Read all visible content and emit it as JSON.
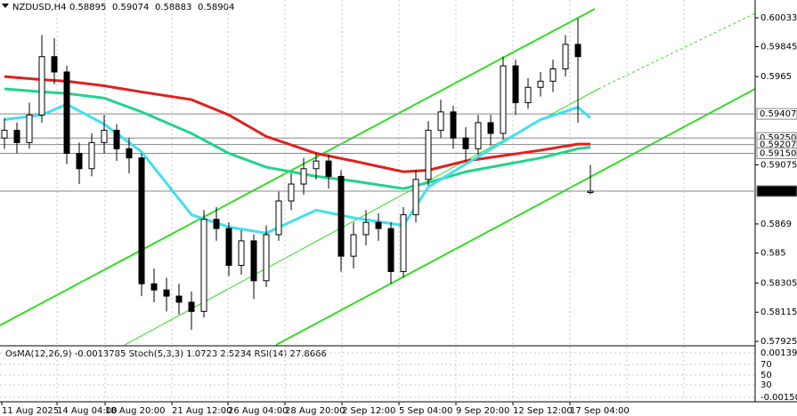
{
  "chart_data": {
    "type": "candlestick",
    "title": "NZDUSD,H4",
    "header_values": [
      "0.58895",
      "0.59074",
      "0.58883",
      "0.58904"
    ],
    "ylim": [
      0.57902,
      0.60149
    ],
    "yticks": [
      0.60033,
      0.59845,
      0.5965,
      0.59075,
      0.5869,
      0.585,
      0.58305,
      0.58115,
      0.57925
    ],
    "xlabels": [
      "11 Aug 2025",
      "14 Aug 04:00",
      "18 Aug 20:00",
      "21 Aug 12:00",
      "26 Aug 04:00",
      "28 Aug 20:00",
      "2 Sep 12:00",
      "5 Sep 04:00",
      "9 Sep 20:00",
      "12 Sep 12:00",
      "17 Sep 04:00"
    ],
    "color": "#000000",
    "grid": true,
    "open": [
      0.5925,
      0.593,
      0.5922,
      0.594,
      0.5978,
      0.5968,
      0.5915,
      0.5905,
      0.5922,
      0.593,
      0.5918,
      0.5912,
      0.583,
      0.5826,
      0.5822,
      0.5818,
      0.5812,
      0.5872,
      0.5866,
      0.5842,
      0.5858,
      0.5832,
      0.5862,
      0.5884,
      0.5895,
      0.5905,
      0.591,
      0.59,
      0.5848,
      0.5862,
      0.587,
      0.5866,
      0.5838,
      0.5875,
      0.5898,
      0.593,
      0.5942,
      0.5925,
      0.5918,
      0.5935,
      0.5928,
      0.5972,
      0.5948,
      0.5958,
      0.5962,
      0.597,
      0.5986,
      0.58895
    ],
    "high": [
      0.5938,
      0.5935,
      0.5948,
      0.5992,
      0.599,
      0.5972,
      0.5922,
      0.5928,
      0.594,
      0.5934,
      0.5925,
      0.5915,
      0.584,
      0.5834,
      0.583,
      0.5825,
      0.5878,
      0.588,
      0.587,
      0.5865,
      0.5862,
      0.5868,
      0.589,
      0.5902,
      0.5912,
      0.5915,
      0.5914,
      0.5904,
      0.587,
      0.5878,
      0.5876,
      0.587,
      0.588,
      0.5904,
      0.5936,
      0.595,
      0.5946,
      0.5932,
      0.594,
      0.594,
      0.5978,
      0.5976,
      0.5964,
      0.5968,
      0.5976,
      0.5992,
      0.6003,
      0.59074
    ],
    "low": [
      0.5918,
      0.5915,
      0.5918,
      0.5935,
      0.596,
      0.5908,
      0.5895,
      0.59,
      0.5915,
      0.591,
      0.5902,
      0.5822,
      0.5818,
      0.5812,
      0.581,
      0.58,
      0.5808,
      0.5858,
      0.5835,
      0.5836,
      0.582,
      0.5828,
      0.5858,
      0.5878,
      0.5888,
      0.5898,
      0.5892,
      0.5838,
      0.584,
      0.5855,
      0.5858,
      0.583,
      0.5834,
      0.587,
      0.5894,
      0.5925,
      0.5918,
      0.591,
      0.5914,
      0.592,
      0.5924,
      0.594,
      0.5944,
      0.5952,
      0.5955,
      0.5965,
      0.5935,
      0.58883
    ],
    "close": [
      0.593,
      0.5922,
      0.594,
      0.5978,
      0.5968,
      0.5915,
      0.5905,
      0.5922,
      0.593,
      0.5918,
      0.5912,
      0.583,
      0.5826,
      0.5822,
      0.5818,
      0.5812,
      0.5872,
      0.5866,
      0.5842,
      0.5858,
      0.5832,
      0.5862,
      0.5884,
      0.5895,
      0.5905,
      0.591,
      0.59,
      0.5848,
      0.5862,
      0.587,
      0.5866,
      0.5838,
      0.5875,
      0.5898,
      0.593,
      0.5942,
      0.5925,
      0.5918,
      0.5935,
      0.5928,
      0.5972,
      0.5948,
      0.5958,
      0.5962,
      0.597,
      0.5986,
      0.5978,
      0.58904
    ],
    "ma_x": [
      0,
      3,
      5,
      8,
      11,
      15,
      18,
      21,
      25,
      28,
      32,
      34,
      37,
      43,
      46,
      47
    ],
    "series": [
      {
        "color": "#e0201e",
        "values": [
          0.5965,
          0.5963,
          0.5962,
          0.5959,
          0.5955,
          0.595,
          0.594,
          0.5926,
          0.5915,
          0.591,
          0.5903,
          0.5904,
          0.591,
          0.5917,
          0.5921,
          0.5921
        ]
      },
      {
        "color": "#22d38a",
        "values": [
          0.5957,
          0.5955,
          0.5954,
          0.5951,
          0.5942,
          0.5928,
          0.5915,
          0.5906,
          0.59,
          0.5897,
          0.5892,
          0.5896,
          0.5903,
          0.5912,
          0.5918,
          0.5919
        ]
      },
      {
        "color": "#40e0f0",
        "values": [
          0.5937,
          0.594,
          0.5947,
          0.5934,
          0.5916,
          0.5875,
          0.5867,
          0.5863,
          0.5878,
          0.5873,
          0.5868,
          0.5893,
          0.5908,
          0.5937,
          0.5945,
          0.5938
        ]
      }
    ],
    "levels": [
      {
        "value": 0.59407,
        "label": "0.59407"
      },
      {
        "value": 0.5925,
        "label": "0.59250"
      },
      {
        "value": 0.59207,
        "label": "0.59207"
      },
      {
        "value": 0.5915,
        "label": "0.59150"
      },
      {
        "value": 0.58904,
        "label": "0.58904"
      }
    ],
    "indicator": {
      "title": "OsMA(12,26,9) -0.0013785  Stoch(5,3,3) 1.0723 2.5234  RSI(14) 27.8666",
      "labels": [
        "0.001393",
        "70",
        "50",
        "30",
        "-0.00150"
      ]
    }
  }
}
